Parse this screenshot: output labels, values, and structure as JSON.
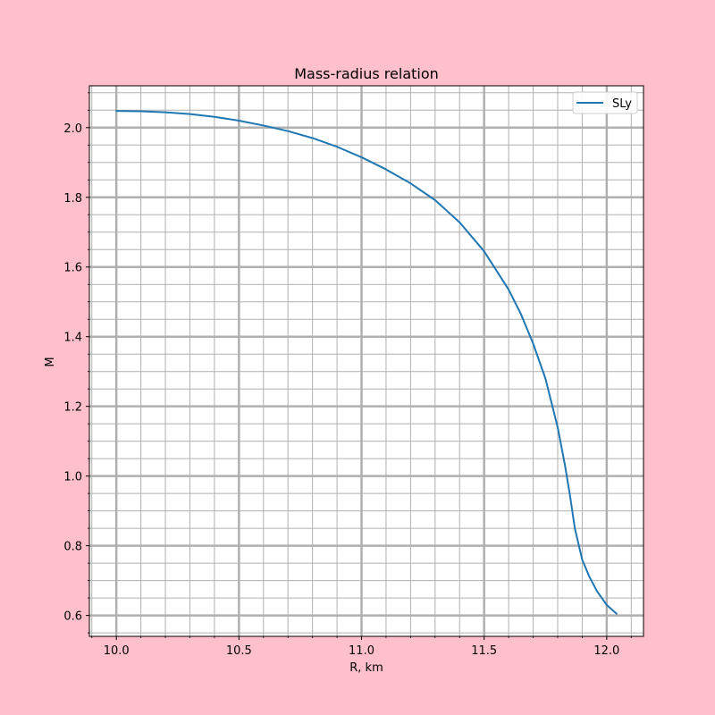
{
  "colors": {
    "figure_background": "#ffc0cb",
    "axes_background": "#ffffff",
    "grid": "#b0b0b0",
    "series": "#1f77b4"
  },
  "chart_data": {
    "type": "line",
    "title": "Mass-radius relation",
    "xlabel": "R, km",
    "ylabel": "M",
    "xlim": [
      9.89,
      12.15
    ],
    "ylim": [
      0.54,
      2.12
    ],
    "xticks": [
      10.0,
      10.5,
      11.0,
      11.5,
      12.0
    ],
    "xtick_labels": [
      "10.0",
      "10.5",
      "11.0",
      "11.5",
      "12.0"
    ],
    "yticks": [
      0.6,
      0.8,
      1.0,
      1.2,
      1.4,
      1.6,
      1.8,
      2.0
    ],
    "ytick_labels": [
      "0.6",
      "0.8",
      "1.0",
      "1.2",
      "1.4",
      "1.6",
      "1.8",
      "2.0"
    ],
    "x_minor_step": 0.1,
    "y_minor_step": 0.05,
    "grid": "major and minor",
    "legend_position": "upper right",
    "series": [
      {
        "name": "SLy",
        "x": [
          10.0,
          10.1,
          10.2,
          10.3,
          10.4,
          10.5,
          10.6,
          10.7,
          10.8,
          10.9,
          11.0,
          11.1,
          11.2,
          11.3,
          11.4,
          11.5,
          11.6,
          11.65,
          11.7,
          11.75,
          11.8,
          11.83,
          11.85,
          11.87,
          11.9,
          11.93,
          11.96,
          12.0,
          12.04
        ],
        "y": [
          2.048,
          2.047,
          2.044,
          2.039,
          2.031,
          2.02,
          2.006,
          1.99,
          1.97,
          1.945,
          1.915,
          1.88,
          1.84,
          1.792,
          1.728,
          1.645,
          1.535,
          1.465,
          1.38,
          1.28,
          1.14,
          1.03,
          0.945,
          0.85,
          0.76,
          0.71,
          0.67,
          0.63,
          0.605
        ]
      }
    ]
  }
}
